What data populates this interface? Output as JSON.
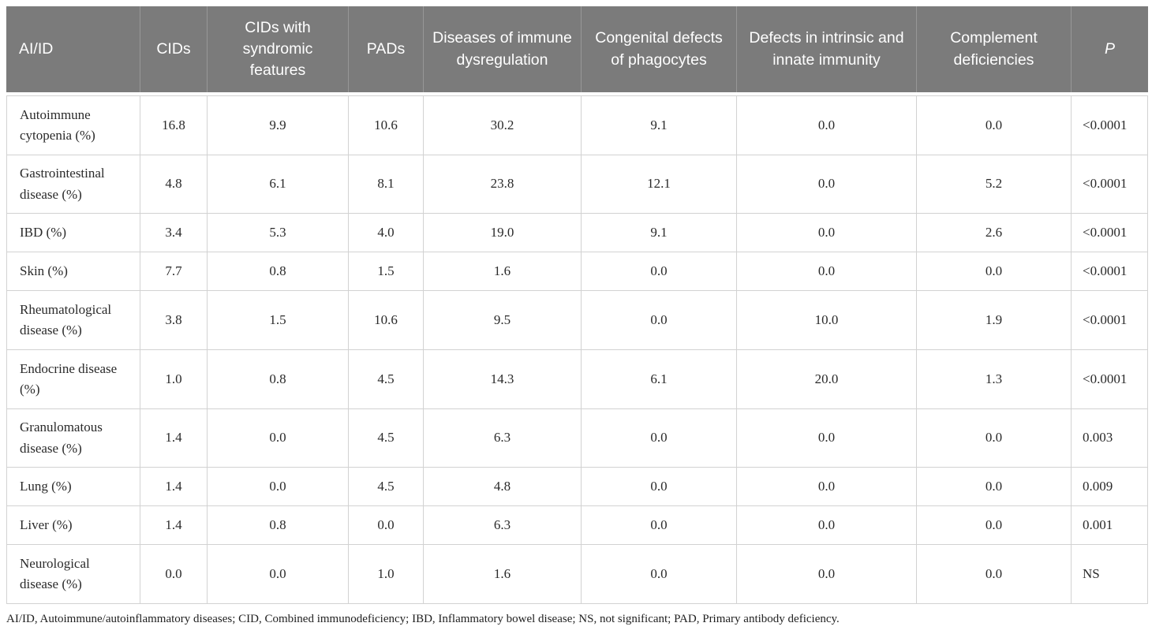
{
  "table": {
    "columns": [
      "AI/ID",
      "CIDs",
      "CIDs with syndromic features",
      "PADs",
      "Diseases of immune dysregulation",
      "Congenital defects of phagocytes",
      "Defects in intrinsic and innate immunity",
      "Complement deficiencies",
      "P"
    ],
    "rows": [
      {
        "label": "Autoimmune cytopenia (%)",
        "values": [
          "16.8",
          "9.9",
          "10.6",
          "30.2",
          "9.1",
          "0.0",
          "0.0",
          "<0.0001"
        ]
      },
      {
        "label": "Gastrointestinal disease (%)",
        "values": [
          "4.8",
          "6.1",
          "8.1",
          "23.8",
          "12.1",
          "0.0",
          "5.2",
          "<0.0001"
        ]
      },
      {
        "label": "IBD (%)",
        "values": [
          "3.4",
          "5.3",
          "4.0",
          "19.0",
          "9.1",
          "0.0",
          "2.6",
          "<0.0001"
        ]
      },
      {
        "label": "Skin (%)",
        "values": [
          "7.7",
          "0.8",
          "1.5",
          "1.6",
          "0.0",
          "0.0",
          "0.0",
          "<0.0001"
        ]
      },
      {
        "label": "Rheumatological disease (%)",
        "values": [
          "3.8",
          "1.5",
          "10.6",
          "9.5",
          "0.0",
          "10.0",
          "1.9",
          "<0.0001"
        ]
      },
      {
        "label": "Endocrine disease (%)",
        "values": [
          "1.0",
          "0.8",
          "4.5",
          "14.3",
          "6.1",
          "20.0",
          "1.3",
          "<0.0001"
        ]
      },
      {
        "label": "Granulomatous disease (%)",
        "values": [
          "1.4",
          "0.0",
          "4.5",
          "6.3",
          "0.0",
          "0.0",
          "0.0",
          "0.003"
        ]
      },
      {
        "label": "Lung (%)",
        "values": [
          "1.4",
          "0.0",
          "4.5",
          "4.8",
          "0.0",
          "0.0",
          "0.0",
          "0.009"
        ]
      },
      {
        "label": "Liver (%)",
        "values": [
          "1.4",
          "0.8",
          "0.0",
          "6.3",
          "0.0",
          "0.0",
          "0.0",
          "0.001"
        ]
      },
      {
        "label": "Neurological disease (%)",
        "values": [
          "0.0",
          "0.0",
          "1.0",
          "1.6",
          "0.0",
          "0.0",
          "0.0",
          "NS"
        ]
      }
    ],
    "colors": {
      "header_bg": "#7b7b7b",
      "header_text": "#ffffff",
      "border": "#d2d2d2"
    }
  },
  "footnote": {
    "text": "AI/ID, Autoimmune/autoinflammatory diseases; CID, Combined immunodeficiency; IBD, Inflammatory bowel disease; NS, not significant; PAD, Primary antibody deficiency."
  }
}
